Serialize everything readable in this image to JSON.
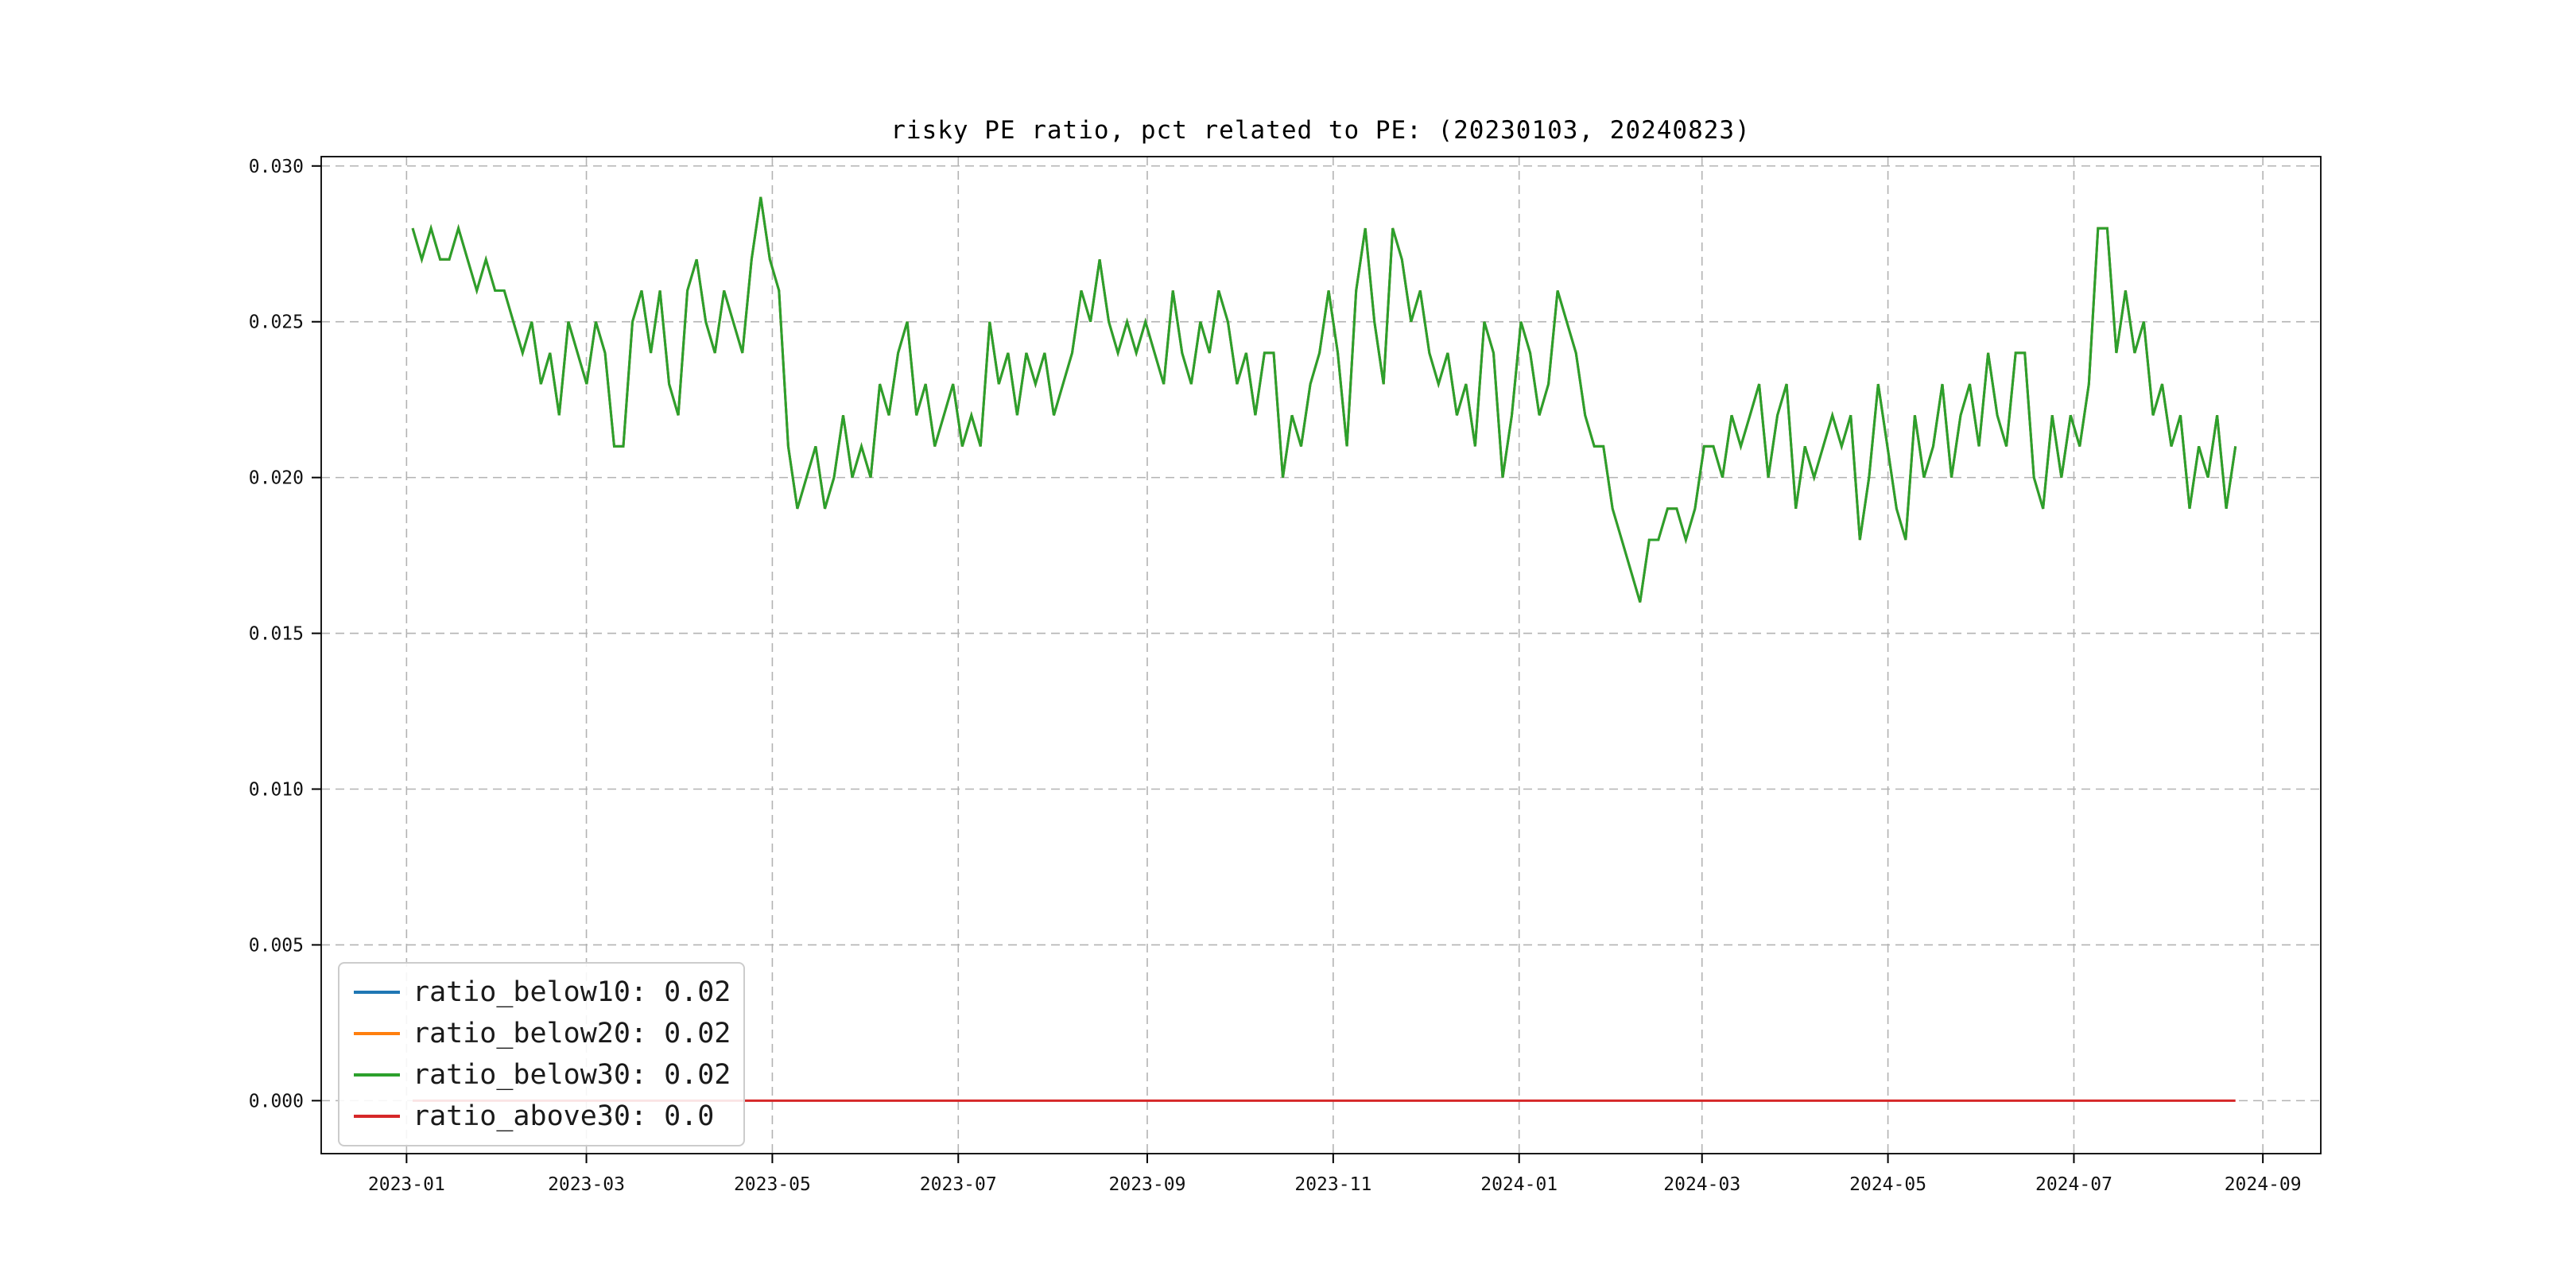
{
  "figure": {
    "background": "#ffffff"
  },
  "chart_data": {
    "type": "line",
    "title": "risky PE ratio, pct related to PE: (20230103, 20240823)",
    "xlabel": "",
    "ylabel": "",
    "grid": true,
    "grid_style": "dashed",
    "grid_color": "#b3b3b3",
    "legend_position": "lower-left",
    "xlim_days": [
      -28,
      628
    ],
    "ylim": [
      -0.0017,
      0.0303
    ],
    "x_range_days": [
      2,
      600
    ],
    "x_ticks": [
      {
        "label": "2023-01",
        "day": 0
      },
      {
        "label": "2023-03",
        "day": 59
      },
      {
        "label": "2023-05",
        "day": 120
      },
      {
        "label": "2023-07",
        "day": 181
      },
      {
        "label": "2023-09",
        "day": 243
      },
      {
        "label": "2023-11",
        "day": 304
      },
      {
        "label": "2024-01",
        "day": 365
      },
      {
        "label": "2024-03",
        "day": 425
      },
      {
        "label": "2024-05",
        "day": 486
      },
      {
        "label": "2024-07",
        "day": 547
      },
      {
        "label": "2024-09",
        "day": 609
      }
    ],
    "y_ticks": [
      0.0,
      0.005,
      0.01,
      0.015,
      0.02,
      0.025,
      0.03
    ],
    "series": [
      {
        "name": "ratio_below10",
        "label": "ratio_below10: 0.02",
        "color": "#1f77b4",
        "data": "overlap_green"
      },
      {
        "name": "ratio_below20",
        "label": "ratio_below20: 0.02",
        "color": "#ff7f0e",
        "data": "overlap_green"
      },
      {
        "name": "ratio_below30",
        "label": "ratio_below30: 0.02",
        "color": "#2ca02c",
        "data": "green_values"
      },
      {
        "name": "ratio_above30",
        "label": "ratio_above30: 0.0",
        "color": "#d62728",
        "data": "zero"
      }
    ],
    "note": "blue and orange series coincide exactly with the green series and are hidden beneath it; red series is constant 0.0",
    "green_values_per_mille": [
      28,
      27,
      28,
      27,
      27,
      28,
      27,
      26,
      27,
      26,
      26,
      25,
      24,
      25,
      23,
      24,
      22,
      25,
      24,
      23,
      25,
      24,
      21,
      21,
      25,
      26,
      24,
      26,
      23,
      22,
      26,
      27,
      25,
      24,
      26,
      25,
      24,
      27,
      29,
      27,
      26,
      21,
      19,
      20,
      21,
      19,
      20,
      22,
      20,
      21,
      20,
      23,
      22,
      24,
      25,
      22,
      23,
      21,
      22,
      23,
      21,
      22,
      21,
      25,
      23,
      24,
      22,
      24,
      23,
      24,
      22,
      23,
      24,
      26,
      25,
      27,
      25,
      24,
      25,
      24,
      25,
      24,
      23,
      26,
      24,
      23,
      25,
      24,
      26,
      25,
      23,
      24,
      22,
      24,
      24,
      20,
      22,
      21,
      23,
      24,
      26,
      24,
      21,
      26,
      28,
      25,
      23,
      28,
      27,
      25,
      26,
      24,
      23,
      24,
      22,
      23,
      21,
      25,
      24,
      20,
      22,
      25,
      24,
      22,
      23,
      26,
      25,
      24,
      22,
      21,
      21,
      19,
      18,
      17,
      16,
      18,
      18,
      19,
      19,
      18,
      19,
      21,
      21,
      20,
      22,
      21,
      22,
      23,
      20,
      22,
      23,
      19,
      21,
      20,
      21,
      22,
      21,
      22,
      18,
      20,
      23,
      21,
      19,
      18,
      22,
      20,
      21,
      23,
      20,
      22,
      23,
      21,
      24,
      22,
      21,
      24,
      24,
      20,
      19,
      22,
      20,
      22,
      21,
      23,
      28,
      28,
      24,
      26,
      24,
      25,
      22,
      23,
      21,
      22,
      19,
      21,
      20,
      22,
      19,
      21
    ],
    "zero_value": 0.0
  }
}
